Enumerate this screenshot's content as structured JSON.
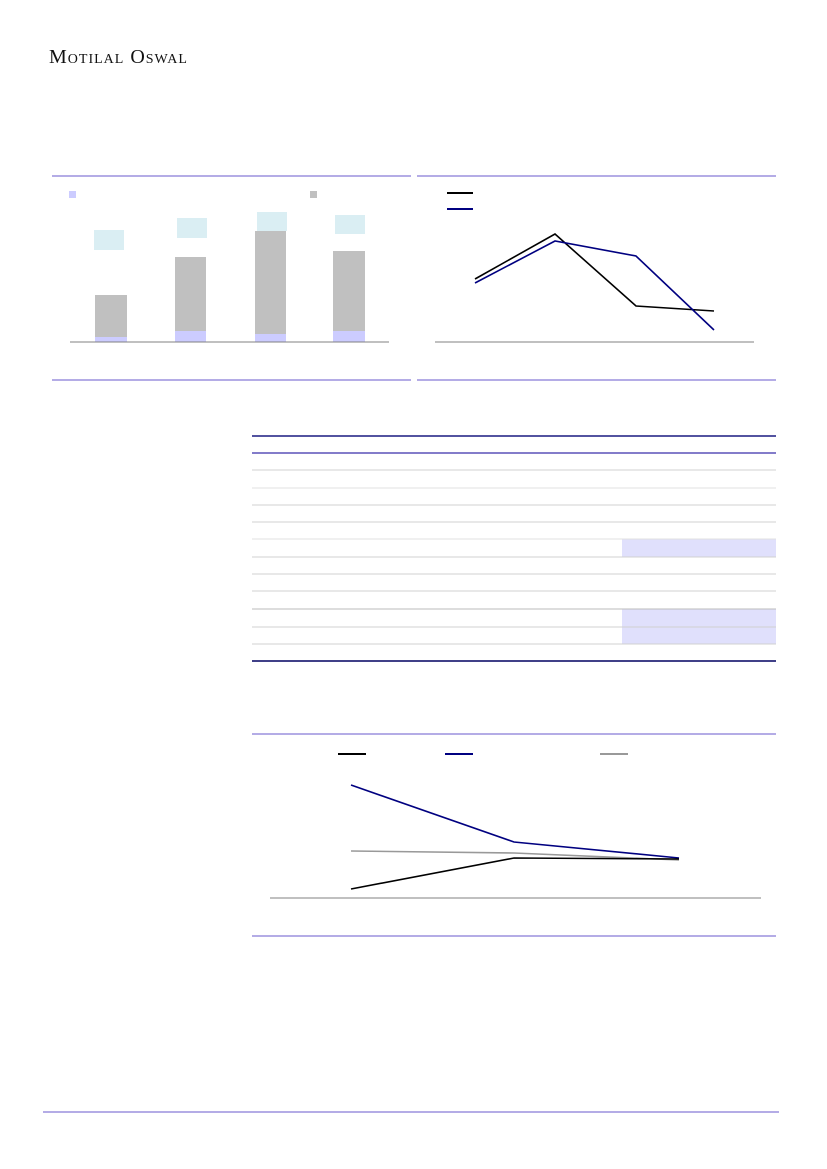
{
  "header": {
    "logo_text": "Motilal Oswal"
  },
  "colors": {
    "rule": "#6a5acd",
    "navy": "#000080",
    "black": "#000000",
    "gray_bar": "#c0c0c0",
    "lavender": "#ccccff",
    "light_blue": "#daeef3",
    "highlight_cell": "#e0e0fc"
  }
}
